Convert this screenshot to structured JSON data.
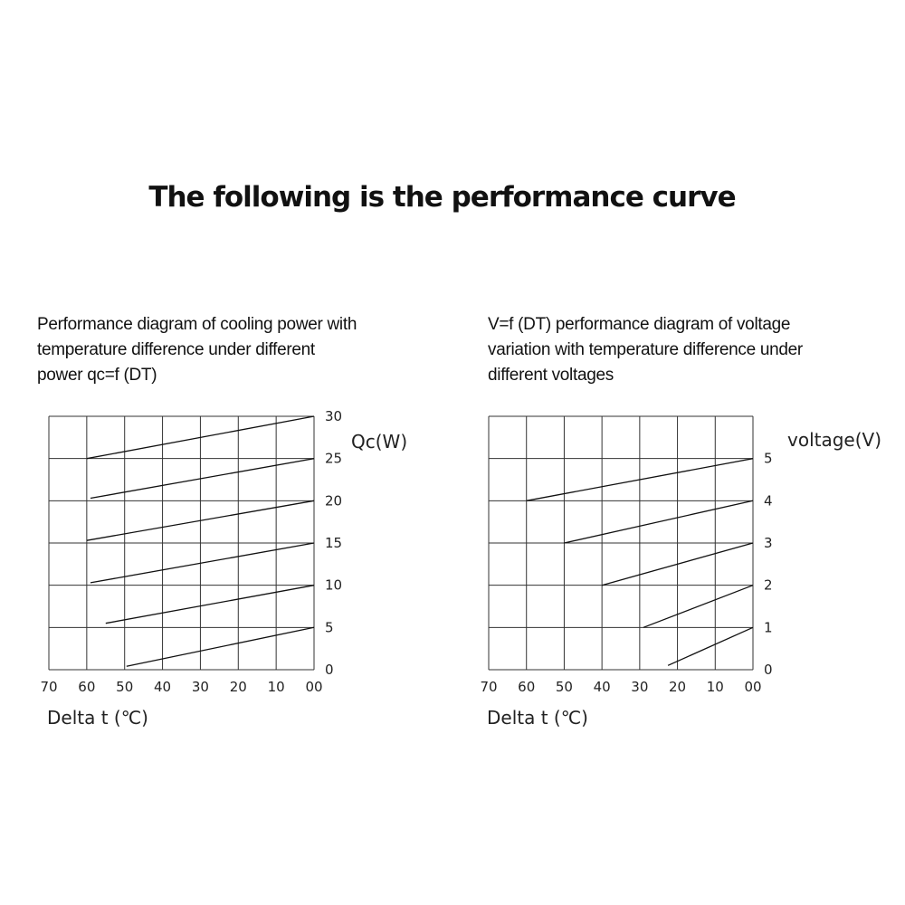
{
  "page": {
    "title": "The following is the performance curve"
  },
  "chart_data": [
    {
      "type": "line",
      "caption": [
        "Performance diagram of cooling power with",
        "temperature difference under different",
        "power qc=f (DT)"
      ],
      "xlabel": "Delta t (℃)",
      "ylabel": "Qc(W)",
      "x_ticks": [
        "70",
        "60",
        "50",
        "40",
        "30",
        "20",
        "10",
        "00"
      ],
      "y_ticks": [
        "0",
        "5",
        "10",
        "15",
        "20",
        "25",
        "30"
      ],
      "xlim": [
        70,
        0
      ],
      "ylim": [
        0,
        30
      ],
      "grid": true,
      "series": [
        {
          "x": [
            60,
            0
          ],
          "y": [
            25,
            30
          ]
        },
        {
          "x": [
            59,
            0
          ],
          "y": [
            20.3,
            25
          ]
        },
        {
          "x": [
            60,
            0
          ],
          "y": [
            15.3,
            20
          ]
        },
        {
          "x": [
            59,
            0
          ],
          "y": [
            10.3,
            15
          ]
        },
        {
          "x": [
            55,
            0
          ],
          "y": [
            5.5,
            10
          ]
        },
        {
          "x": [
            49.5,
            0
          ],
          "y": [
            0.4,
            5
          ]
        }
      ]
    },
    {
      "type": "line",
      "caption": [
        "V=f (DT) performance diagram of voltage",
        "variation with temperature difference under",
        "different voltages"
      ],
      "xlabel": "Delta t (℃)",
      "ylabel": "voltage(V)",
      "x_ticks": [
        "70",
        "60",
        "50",
        "40",
        "30",
        "20",
        "10",
        "00"
      ],
      "y_ticks": [
        "0",
        "1",
        "2",
        "3",
        "4",
        "5"
      ],
      "xlim": [
        70,
        0
      ],
      "ylim": [
        0,
        6
      ],
      "grid": true,
      "series": [
        {
          "x": [
            60,
            0
          ],
          "y": [
            4,
            5
          ]
        },
        {
          "x": [
            50,
            0
          ],
          "y": [
            3,
            4
          ]
        },
        {
          "x": [
            40,
            0
          ],
          "y": [
            2,
            3
          ]
        },
        {
          "x": [
            29,
            0
          ],
          "y": [
            1,
            2
          ]
        },
        {
          "x": [
            22.5,
            0
          ],
          "y": [
            0.1,
            1
          ]
        }
      ]
    }
  ]
}
